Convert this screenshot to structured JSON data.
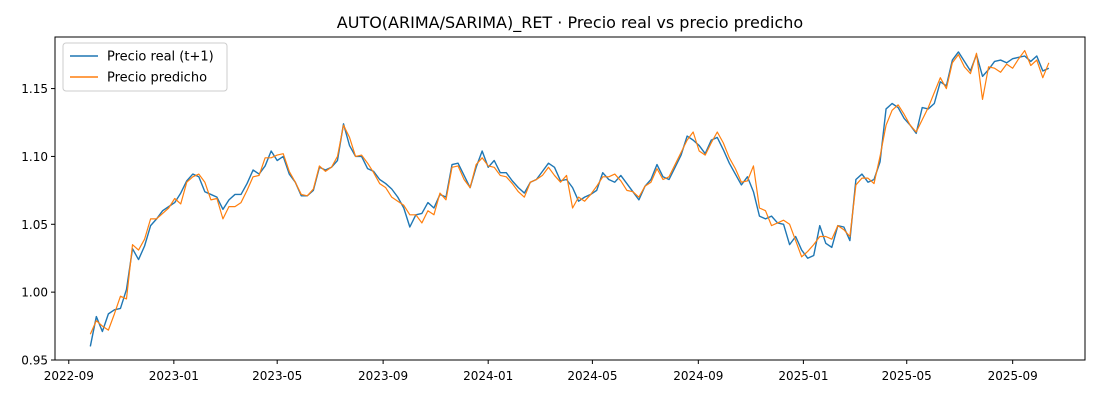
{
  "chart_data": {
    "type": "line",
    "title": "AUTO(ARIMA/SARIMA)_RET · Precio real vs precio predicho",
    "xlabel": "",
    "ylabel": "",
    "x_ticks": [
      "2022-09",
      "2023-01",
      "2023-05",
      "2023-09",
      "2024-01",
      "2024-05",
      "2024-09",
      "2025-01",
      "2025-05",
      "2025-09"
    ],
    "y_ticks": [
      0.95,
      1.0,
      1.05,
      1.1,
      1.15
    ],
    "y_tick_labels": [
      "0.95",
      "1.00",
      "1.05",
      "1.10",
      "1.15"
    ],
    "xlim": [
      "2022-08-16",
      "2025-11-24"
    ],
    "ylim": [
      0.95,
      1.188
    ],
    "grid": false,
    "legend_position": "top-left",
    "x": [
      "2022-09-26",
      "2022-10-03",
      "2022-10-10",
      "2022-10-17",
      "2022-10-24",
      "2022-10-31",
      "2022-11-07",
      "2022-11-14",
      "2022-11-21",
      "2022-11-28",
      "2022-12-05",
      "2022-12-12",
      "2022-12-19",
      "2022-12-26",
      "2023-01-02",
      "2023-01-09",
      "2023-01-16",
      "2023-01-23",
      "2023-01-30",
      "2023-02-06",
      "2023-02-13",
      "2023-02-20",
      "2023-02-27",
      "2023-03-06",
      "2023-03-13",
      "2023-03-20",
      "2023-03-27",
      "2023-04-03",
      "2023-04-10",
      "2023-04-17",
      "2023-04-24",
      "2023-05-01",
      "2023-05-08",
      "2023-05-15",
      "2023-05-22",
      "2023-05-29",
      "2023-06-05",
      "2023-06-12",
      "2023-06-19",
      "2023-06-26",
      "2023-07-03",
      "2023-07-10",
      "2023-07-17",
      "2023-07-24",
      "2023-07-31",
      "2023-08-07",
      "2023-08-14",
      "2023-08-21",
      "2023-08-28",
      "2023-09-04",
      "2023-09-11",
      "2023-09-18",
      "2023-09-25",
      "2023-10-02",
      "2023-10-09",
      "2023-10-16",
      "2023-10-23",
      "2023-10-30",
      "2023-11-06",
      "2023-11-13",
      "2023-11-20",
      "2023-11-27",
      "2023-12-04",
      "2023-12-11",
      "2023-12-18",
      "2023-12-25",
      "2024-01-01",
      "2024-01-08",
      "2024-01-15",
      "2024-01-22",
      "2024-01-29",
      "2024-02-05",
      "2024-02-12",
      "2024-02-19",
      "2024-02-26",
      "2024-03-04",
      "2024-03-11",
      "2024-03-18",
      "2024-03-25",
      "2024-04-01",
      "2024-04-08",
      "2024-04-15",
      "2024-04-22",
      "2024-04-29",
      "2024-05-06",
      "2024-05-13",
      "2024-05-20",
      "2024-05-27",
      "2024-06-03",
      "2024-06-10",
      "2024-06-17",
      "2024-06-24",
      "2024-07-01",
      "2024-07-08",
      "2024-07-15",
      "2024-07-22",
      "2024-07-29",
      "2024-08-05",
      "2024-08-12",
      "2024-08-19",
      "2024-08-26",
      "2024-09-02",
      "2024-09-09",
      "2024-09-16",
      "2024-09-23",
      "2024-09-30",
      "2024-10-07",
      "2024-10-14",
      "2024-10-21",
      "2024-10-28",
      "2024-11-04",
      "2024-11-11",
      "2024-11-18",
      "2024-11-25",
      "2024-12-02",
      "2024-12-09",
      "2024-12-16",
      "2024-12-23",
      "2024-12-30",
      "2025-01-06",
      "2025-01-13",
      "2025-01-20",
      "2025-01-27",
      "2025-02-03",
      "2025-02-10",
      "2025-02-17",
      "2025-02-24",
      "2025-03-03",
      "2025-03-10",
      "2025-03-17",
      "2025-03-24",
      "2025-03-31",
      "2025-04-07",
      "2025-04-14",
      "2025-04-21",
      "2025-04-28",
      "2025-05-05",
      "2025-05-12",
      "2025-05-19",
      "2025-05-26",
      "2025-06-02",
      "2025-06-09",
      "2025-06-16",
      "2025-06-23",
      "2025-06-30",
      "2025-07-07",
      "2025-07-14",
      "2025-07-21",
      "2025-07-28",
      "2025-08-04",
      "2025-08-11",
      "2025-08-18",
      "2025-08-25",
      "2025-09-01",
      "2025-09-08",
      "2025-09-15",
      "2025-09-22",
      "2025-09-29",
      "2025-10-06",
      "2025-10-13"
    ],
    "series": [
      {
        "name": "Precio real (t+1)",
        "color": "#1f77b4",
        "values": [
          0.96,
          0.982,
          0.971,
          0.984,
          0.987,
          0.988,
          1.002,
          1.032,
          1.024,
          1.034,
          1.049,
          1.054,
          1.06,
          1.063,
          1.066,
          1.073,
          1.082,
          1.087,
          1.085,
          1.074,
          1.072,
          1.07,
          1.061,
          1.068,
          1.072,
          1.072,
          1.08,
          1.09,
          1.087,
          1.093,
          1.104,
          1.097,
          1.1,
          1.087,
          1.081,
          1.071,
          1.071,
          1.075,
          1.092,
          1.09,
          1.092,
          1.097,
          1.124,
          1.108,
          1.1,
          1.1,
          1.091,
          1.089,
          1.083,
          1.08,
          1.076,
          1.07,
          1.062,
          1.048,
          1.057,
          1.058,
          1.066,
          1.062,
          1.072,
          1.07,
          1.094,
          1.095,
          1.086,
          1.077,
          1.092,
          1.104,
          1.092,
          1.097,
          1.088,
          1.088,
          1.082,
          1.077,
          1.073,
          1.081,
          1.083,
          1.089,
          1.095,
          1.092,
          1.082,
          1.083,
          1.077,
          1.067,
          1.07,
          1.072,
          1.075,
          1.088,
          1.083,
          1.081,
          1.086,
          1.08,
          1.074,
          1.068,
          1.078,
          1.083,
          1.094,
          1.085,
          1.083,
          1.092,
          1.101,
          1.115,
          1.112,
          1.108,
          1.102,
          1.112,
          1.114,
          1.105,
          1.095,
          1.087,
          1.079,
          1.085,
          1.074,
          1.056,
          1.054,
          1.056,
          1.051,
          1.05,
          1.035,
          1.041,
          1.031,
          1.025,
          1.027,
          1.049,
          1.036,
          1.033,
          1.049,
          1.048,
          1.038,
          1.083,
          1.087,
          1.081,
          1.083,
          1.096,
          1.135,
          1.139,
          1.136,
          1.128,
          1.123,
          1.117,
          1.136,
          1.135,
          1.139,
          1.155,
          1.152,
          1.171,
          1.177,
          1.17,
          1.163,
          1.175,
          1.159,
          1.164,
          1.17,
          1.171,
          1.169,
          1.172,
          1.173,
          1.174,
          1.17,
          1.174,
          1.163,
          1.165
        ]
      },
      {
        "name": "Precio predicho",
        "color": "#ff7f0e",
        "values": [
          0.969,
          0.979,
          0.975,
          0.972,
          0.984,
          0.997,
          0.995,
          1.035,
          1.031,
          1.039,
          1.054,
          1.054,
          1.058,
          1.062,
          1.069,
          1.065,
          1.081,
          1.085,
          1.087,
          1.081,
          1.068,
          1.069,
          1.054,
          1.063,
          1.063,
          1.066,
          1.075,
          1.085,
          1.086,
          1.099,
          1.099,
          1.101,
          1.102,
          1.089,
          1.081,
          1.072,
          1.071,
          1.076,
          1.093,
          1.089,
          1.092,
          1.1,
          1.123,
          1.114,
          1.1,
          1.101,
          1.095,
          1.088,
          1.08,
          1.077,
          1.07,
          1.067,
          1.064,
          1.057,
          1.057,
          1.051,
          1.06,
          1.057,
          1.073,
          1.068,
          1.092,
          1.093,
          1.083,
          1.077,
          1.094,
          1.099,
          1.093,
          1.092,
          1.086,
          1.085,
          1.08,
          1.074,
          1.07,
          1.081,
          1.083,
          1.086,
          1.092,
          1.086,
          1.081,
          1.086,
          1.062,
          1.07,
          1.067,
          1.072,
          1.078,
          1.085,
          1.085,
          1.087,
          1.082,
          1.075,
          1.074,
          1.07,
          1.078,
          1.081,
          1.091,
          1.083,
          1.085,
          1.094,
          1.103,
          1.112,
          1.118,
          1.104,
          1.101,
          1.11,
          1.118,
          1.11,
          1.099,
          1.091,
          1.081,
          1.082,
          1.093,
          1.062,
          1.06,
          1.049,
          1.051,
          1.053,
          1.05,
          1.038,
          1.026,
          1.03,
          1.035,
          1.041,
          1.041,
          1.039,
          1.049,
          1.046,
          1.041,
          1.079,
          1.084,
          1.084,
          1.08,
          1.1,
          1.123,
          1.134,
          1.138,
          1.131,
          1.123,
          1.118,
          1.127,
          1.136,
          1.147,
          1.158,
          1.15,
          1.169,
          1.175,
          1.166,
          1.161,
          1.176,
          1.142,
          1.166,
          1.165,
          1.162,
          1.168,
          1.165,
          1.172,
          1.178,
          1.167,
          1.171,
          1.158,
          1.169
        ]
      }
    ]
  }
}
